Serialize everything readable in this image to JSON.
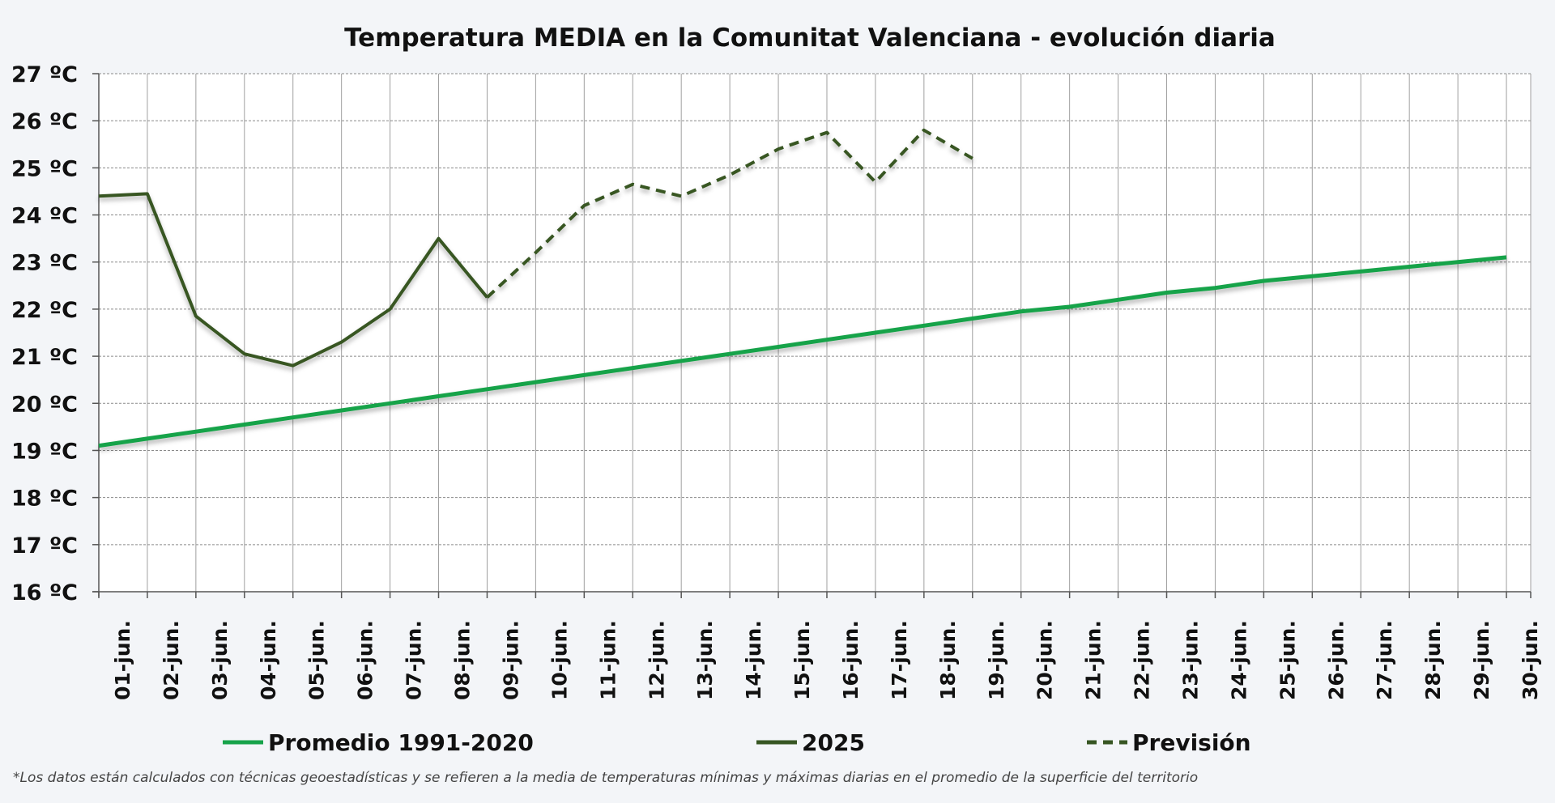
{
  "chart_data": {
    "type": "line",
    "title": "Temperatura MEDIA en la Comunitat Valenciana - evolución diaria",
    "ylim": [
      16,
      27
    ],
    "ytick_labels": [
      "16 ºC",
      "17 ºC",
      "18 ºC",
      "19 ºC",
      "20 ºC",
      "21 ºC",
      "22 ºC",
      "23 ºC",
      "24 ºC",
      "25 ºC",
      "26 ºC",
      "27 ºC"
    ],
    "categories": [
      "01-jun.",
      "02-jun.",
      "03-jun.",
      "04-jun.",
      "05-jun.",
      "06-jun.",
      "07-jun.",
      "08-jun.",
      "09-jun.",
      "10-jun.",
      "11-jun.",
      "12-jun.",
      "13-jun.",
      "14-jun.",
      "15-jun.",
      "16-jun.",
      "17-jun.",
      "18-jun.",
      "19-jun.",
      "20-jun.",
      "21-jun.",
      "22-jun.",
      "23-jun.",
      "24-jun.",
      "25-jun.",
      "26-jun.",
      "27-jun.",
      "28-jun.",
      "29-jun.",
      "30-jun."
    ],
    "grid": true,
    "legend_position": "bottom",
    "series": [
      {
        "name": "Promedio 1991-2020",
        "style": "solid",
        "color": "#17a34a",
        "values": [
          19.1,
          19.25,
          19.4,
          19.55,
          19.7,
          19.85,
          20.0,
          20.15,
          20.3,
          20.45,
          20.6,
          20.75,
          20.9,
          21.05,
          21.2,
          21.35,
          21.5,
          21.65,
          21.8,
          21.95,
          22.05,
          22.2,
          22.35,
          22.45,
          22.6,
          22.7,
          22.8,
          22.9,
          23.0,
          23.1
        ]
      },
      {
        "name": "2025",
        "style": "solid",
        "color": "#375623",
        "values": [
          24.4,
          24.45,
          21.85,
          21.05,
          20.8,
          21.3,
          22.0,
          23.5,
          22.25,
          null,
          null,
          null,
          null,
          null,
          null,
          null,
          null,
          null,
          null,
          null,
          null,
          null,
          null,
          null,
          null,
          null,
          null,
          null,
          null,
          null
        ]
      },
      {
        "name": "Previsión",
        "style": "dashed",
        "color": "#375623",
        "values": [
          null,
          null,
          null,
          null,
          null,
          null,
          null,
          null,
          22.25,
          23.2,
          24.2,
          24.65,
          24.4,
          24.85,
          25.4,
          25.75,
          24.7,
          25.8,
          25.2,
          null,
          null,
          null,
          null,
          null,
          null,
          null,
          null,
          null,
          null,
          null
        ]
      }
    ],
    "footnote": "*Los datos están calculados con técnicas geoestadísticas y se refieren a la media de temperaturas mínimas y máximas diarias en el promedio de la superficie del territorio"
  }
}
